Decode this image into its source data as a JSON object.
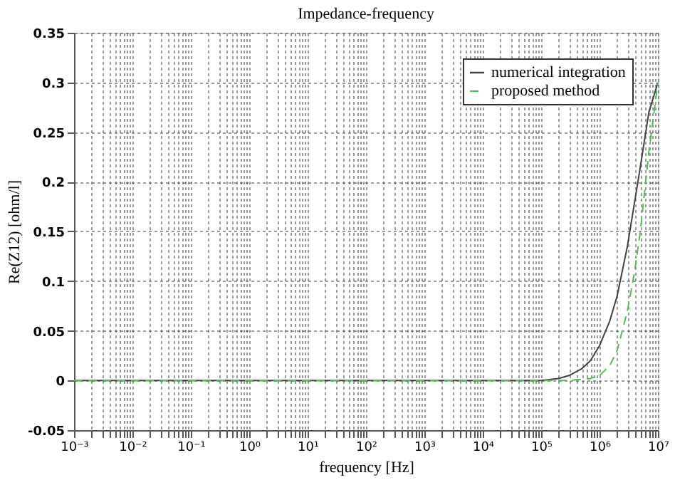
{
  "chart_data": {
    "type": "line",
    "title": "Impedance-frequency",
    "xlabel": "frequency [Hz]",
    "ylabel": "Re(Z12) [ohm/l]",
    "log": "x",
    "grid": true,
    "legend": "top right",
    "marker": "none",
    "xlim": [
      0.001,
      10000000
    ],
    "ylim": [
      -0.05,
      0.35
    ],
    "yticks": [
      -0.05,
      0,
      0.05,
      0.1,
      0.15,
      0.2,
      0.25,
      0.3,
      0.35
    ],
    "xticks": [
      {
        "value": 0.001,
        "label": "10⁻³"
      },
      {
        "value": 0.002,
        "label": null
      },
      {
        "value": 0.003,
        "label": null
      },
      {
        "value": 0.004,
        "label": null
      },
      {
        "value": 0.005,
        "label": null
      },
      {
        "value": 0.006,
        "label": null
      },
      {
        "value": 0.007,
        "label": null
      },
      {
        "value": 0.008,
        "label": null
      },
      {
        "value": 0.009,
        "label": null
      },
      {
        "value": 0.01,
        "label": "10⁻²"
      },
      {
        "value": 0.02,
        "label": null
      },
      {
        "value": 0.03,
        "label": null
      },
      {
        "value": 0.04,
        "label": null
      },
      {
        "value": 0.05,
        "label": null
      },
      {
        "value": 0.06,
        "label": null
      },
      {
        "value": 0.07,
        "label": null
      },
      {
        "value": 0.08,
        "label": null
      },
      {
        "value": 0.09,
        "label": null
      },
      {
        "value": 0.1,
        "label": "10⁻¹"
      },
      {
        "value": 0.2,
        "label": null
      },
      {
        "value": 0.3,
        "label": null
      },
      {
        "value": 0.4,
        "label": null
      },
      {
        "value": 0.5,
        "label": null
      },
      {
        "value": 0.6,
        "label": null
      },
      {
        "value": 0.7,
        "label": null
      },
      {
        "value": 0.8,
        "label": null
      },
      {
        "value": 0.9,
        "label": null
      },
      {
        "value": 1,
        "label": "10⁰"
      },
      {
        "value": 2,
        "label": null
      },
      {
        "value": 3,
        "label": null
      },
      {
        "value": 4,
        "label": null
      },
      {
        "value": 5,
        "label": null
      },
      {
        "value": 6,
        "label": null
      },
      {
        "value": 7,
        "label": null
      },
      {
        "value": 8,
        "label": null
      },
      {
        "value": 9,
        "label": null
      },
      {
        "value": 10,
        "label": "10¹"
      },
      {
        "value": 20,
        "label": null
      },
      {
        "value": 30,
        "label": null
      },
      {
        "value": 40,
        "label": null
      },
      {
        "value": 50,
        "label": null
      },
      {
        "value": 60,
        "label": null
      },
      {
        "value": 70,
        "label": null
      },
      {
        "value": 80,
        "label": null
      },
      {
        "value": 90,
        "label": null
      },
      {
        "value": 100,
        "label": "10²"
      },
      {
        "value": 200,
        "label": null
      },
      {
        "value": 300,
        "label": null
      },
      {
        "value": 400,
        "label": null
      },
      {
        "value": 500,
        "label": null
      },
      {
        "value": 600,
        "label": null
      },
      {
        "value": 700,
        "label": null
      },
      {
        "value": 800,
        "label": null
      },
      {
        "value": 900,
        "label": null
      },
      {
        "value": 1000,
        "label": "10³"
      },
      {
        "value": 2000,
        "label": null
      },
      {
        "value": 3000,
        "label": null
      },
      {
        "value": 4000,
        "label": null
      },
      {
        "value": 5000,
        "label": null
      },
      {
        "value": 6000,
        "label": null
      },
      {
        "value": 7000,
        "label": null
      },
      {
        "value": 8000,
        "label": null
      },
      {
        "value": 9000,
        "label": null
      },
      {
        "value": 10000,
        "label": "10⁴"
      },
      {
        "value": 20000,
        "label": null
      },
      {
        "value": 30000,
        "label": null
      },
      {
        "value": 40000,
        "label": null
      },
      {
        "value": 50000,
        "label": null
      },
      {
        "value": 60000,
        "label": null
      },
      {
        "value": 70000,
        "label": null
      },
      {
        "value": 80000,
        "label": null
      },
      {
        "value": 90000,
        "label": null
      },
      {
        "value": 100000,
        "label": "10⁵"
      },
      {
        "value": 200000,
        "label": null
      },
      {
        "value": 300000,
        "label": null
      },
      {
        "value": 400000,
        "label": null
      },
      {
        "value": 500000,
        "label": null
      },
      {
        "value": 600000,
        "label": null
      },
      {
        "value": 700000,
        "label": null
      },
      {
        "value": 800000,
        "label": null
      },
      {
        "value": 900000,
        "label": null
      },
      {
        "value": 1000000,
        "label": "10⁶"
      },
      {
        "value": 2000000,
        "label": null
      },
      {
        "value": 3000000,
        "label": null
      },
      {
        "value": 4000000,
        "label": null
      },
      {
        "value": 5000000,
        "label": null
      },
      {
        "value": 6000000,
        "label": null
      },
      {
        "value": 7000000,
        "label": null
      },
      {
        "value": 8000000,
        "label": null
      },
      {
        "value": 9000000,
        "label": null
      },
      {
        "value": 10000000,
        "label": "10⁷"
      }
    ],
    "series": [
      {
        "name": "numerical integration",
        "color": "#404040",
        "line_style": "solid",
        "x": [
          0.001,
          0.01,
          0.1,
          1,
          10,
          100,
          1000,
          10000,
          100000,
          200000,
          300000,
          500000,
          700000,
          1000000,
          1500000,
          2000000,
          3000000,
          4000000,
          5000000,
          7000000,
          10000000
        ],
        "values": [
          0,
          0,
          0,
          0,
          0,
          0,
          0,
          0,
          0,
          0.002,
          0.005,
          0.012,
          0.02,
          0.035,
          0.06,
          0.085,
          0.135,
          0.18,
          0.215,
          0.27,
          0.3
        ]
      },
      {
        "name": "proposed method",
        "color": "#55bb55",
        "line_style": "dashed",
        "x": [
          0.001,
          0.01,
          0.1,
          1,
          10,
          100,
          1000,
          10000,
          100000,
          300000,
          700000,
          1000000,
          1500000,
          2000000,
          3000000,
          4000000,
          5000000,
          7000000,
          10000000
        ],
        "values": [
          0,
          0,
          0,
          0,
          0,
          0,
          0,
          0,
          0,
          0,
          0.002,
          0.005,
          0.015,
          0.03,
          0.07,
          0.11,
          0.15,
          0.23,
          0.3
        ]
      }
    ]
  }
}
